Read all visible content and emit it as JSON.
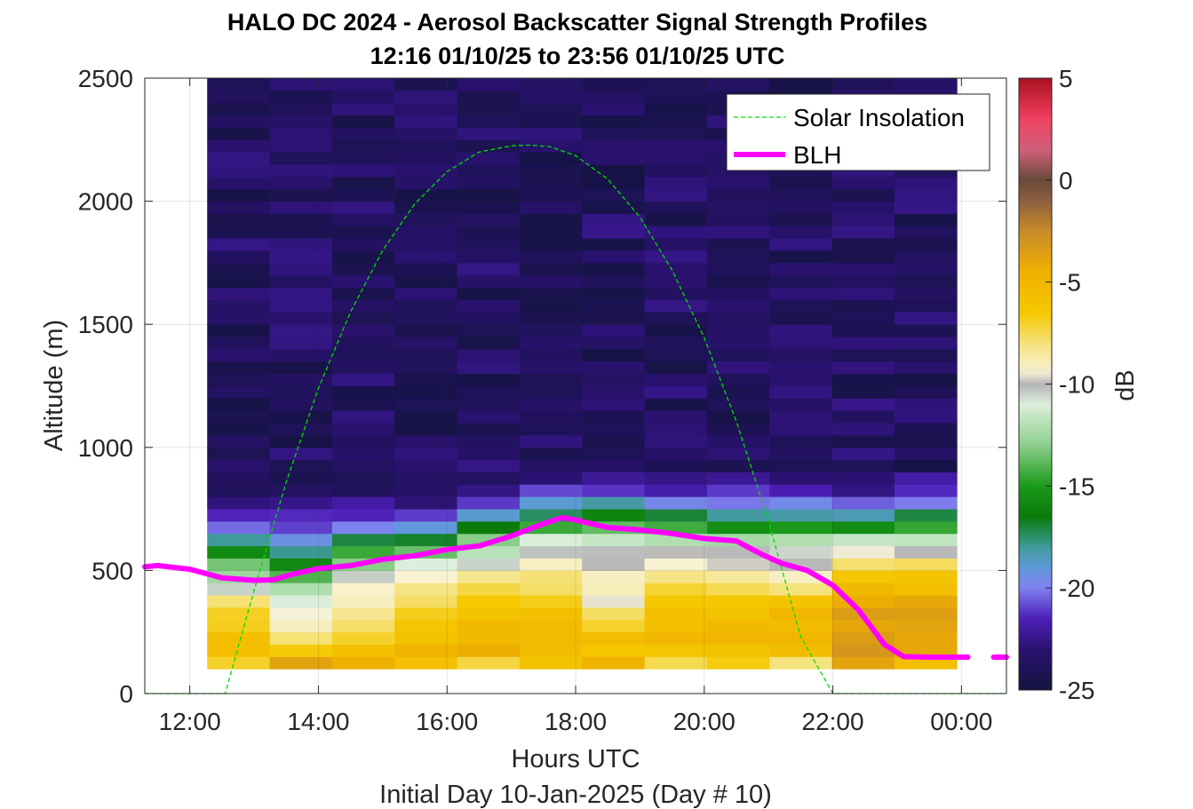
{
  "chart_data": {
    "type": "heatmap",
    "title": "HALO DC 2024 - Aerosol Backscatter Signal Strength Profiles",
    "subtitle": "12:16 01/10/25 to 23:56 01/10/25  UTC",
    "xlabel": "Hours UTC",
    "xlabel2": "Initial Day 10-Jan-2025 (Day # 10)",
    "ylabel": "Altitude (m)",
    "xlim": [
      11.3,
      24.7
    ],
    "ylim": [
      0,
      2500
    ],
    "x_ticks": [
      12,
      14,
      16,
      18,
      20,
      22,
      24
    ],
    "x_tick_labels": [
      "12:00",
      "14:00",
      "16:00",
      "18:00",
      "20:00",
      "22:00",
      "00:00"
    ],
    "y_ticks": [
      0,
      500,
      1000,
      1500,
      2000,
      2500
    ],
    "y_tick_labels": [
      "0",
      "500",
      "1000",
      "1500",
      "2000",
      "2500"
    ],
    "grid": true,
    "colorbar": {
      "label": "dB",
      "min": -25,
      "max": 5,
      "ticks": [
        5,
        0,
        -5,
        -10,
        -15,
        -20,
        -25
      ],
      "tick_labels": [
        "5",
        "0",
        "-5",
        "-10",
        "-15",
        "-20",
        "-25"
      ],
      "stops": [
        {
          "v": -25,
          "c": "#13133f"
        },
        {
          "v": -23,
          "c": "#2a1270"
        },
        {
          "v": -21.5,
          "c": "#4d1fb8"
        },
        {
          "v": -20,
          "c": "#8080f0"
        },
        {
          "v": -19,
          "c": "#5f9ad8"
        },
        {
          "v": -18,
          "c": "#3f9a9a"
        },
        {
          "v": -16.5,
          "c": "#0a7a0a"
        },
        {
          "v": -15,
          "c": "#1a9a1a"
        },
        {
          "v": -13,
          "c": "#8ccf8c"
        },
        {
          "v": -11,
          "c": "#dcefdc"
        },
        {
          "v": -10,
          "c": "#b4b4b4"
        },
        {
          "v": -9.4,
          "c": "#f8f3d8"
        },
        {
          "v": -8,
          "c": "#f5e27a"
        },
        {
          "v": -6.5,
          "c": "#f5c800"
        },
        {
          "v": -4.5,
          "c": "#efb000"
        },
        {
          "v": -2.5,
          "c": "#c88a2a"
        },
        {
          "v": -1,
          "c": "#8c6040"
        },
        {
          "v": 0,
          "c": "#6a4a3a"
        },
        {
          "v": 1.5,
          "c": "#d0607a"
        },
        {
          "v": 3,
          "c": "#f04060"
        },
        {
          "v": 5,
          "c": "#aa1020"
        }
      ]
    },
    "grid_spec": {
      "time_start": 12.27,
      "time_end": 23.93,
      "n_time": 12,
      "alt_start": 100,
      "alt_end": 2500,
      "alt_step": 50
    },
    "profiles_db": [
      [
        -8,
        -6,
        -6,
        -6,
        -7,
        -8,
        -9,
        -11,
        -13,
        -15,
        -17,
        -20,
        -21,
        -22,
        -23,
        -24,
        -24
      ],
      [
        -3,
        -5,
        -7,
        -8,
        -9,
        -10,
        -11,
        -13,
        -15,
        -17,
        -19,
        -20,
        -21,
        -22,
        -23,
        -24,
        -24
      ],
      [
        -5,
        -5,
        -6,
        -7,
        -8,
        -8,
        -9,
        -10,
        -12,
        -14,
        -16,
        -19,
        -21,
        -22,
        -23,
        -24,
        -24
      ],
      [
        -6,
        -5,
        -5,
        -6,
        -6,
        -7,
        -8,
        -9,
        -10,
        -12,
        -15,
        -18,
        -20,
        -22,
        -23,
        -24,
        -24
      ],
      [
        -9,
        -5,
        -5,
        -5,
        -6,
        -6,
        -7,
        -8,
        -9,
        -11,
        -12,
        -15,
        -18,
        -20,
        -22,
        -23,
        -24
      ],
      [
        -7,
        -6,
        -5,
        -5,
        -6,
        -6,
        -7,
        -8,
        -9,
        -10,
        -11,
        -12,
        -16,
        -18,
        -20,
        -22,
        -23
      ],
      [
        -3,
        -7,
        -6,
        -6,
        -7,
        -8,
        -10,
        -9,
        -9,
        -10,
        -11,
        -12,
        -15,
        -17,
        -20,
        -22,
        -23
      ],
      [
        -8,
        -7,
        -5,
        -5,
        -6,
        -6,
        -7,
        -8,
        -9,
        -10,
        -11,
        -13,
        -16,
        -18,
        -21,
        -22,
        -23
      ],
      [
        -7,
        -7,
        -5,
        -5,
        -6,
        -6,
        -7,
        -8,
        -9,
        -10,
        -11,
        -13,
        -17,
        -19,
        -21,
        -22,
        -23
      ],
      [
        -9,
        -6,
        -5,
        -5,
        -5,
        -6,
        -7,
        -8,
        -9,
        -10,
        -11,
        -12,
        -17,
        -19,
        -21,
        -22,
        -23
      ],
      [
        -4,
        -4,
        -3,
        -3,
        -4,
        -4,
        -5,
        -6,
        -7,
        -9,
        -11,
        -13,
        -18,
        -20,
        -22,
        -23,
        -24
      ],
      [
        -6,
        -5,
        -4,
        -4,
        -4,
        -4,
        -5,
        -6,
        -7,
        -9,
        -11,
        -13,
        -15,
        -18,
        -21,
        -22,
        -23
      ]
    ],
    "solar_insolation": {
      "name": "Solar Insolation",
      "color": "#00dd00",
      "x": [
        11.3,
        12.55,
        13.0,
        13.5,
        14.0,
        14.5,
        15.0,
        15.5,
        16.0,
        16.5,
        17.0,
        17.3,
        17.6,
        18.0,
        18.5,
        19.0,
        19.5,
        20.0,
        20.5,
        21.0,
        21.5,
        22.0,
        24.7
      ],
      "y": [
        0,
        0,
        420,
        860,
        1240,
        1550,
        1800,
        1990,
        2120,
        2200,
        2225,
        2228,
        2222,
        2185,
        2090,
        1935,
        1720,
        1445,
        1105,
        700,
        230,
        0,
        0
      ]
    },
    "blh": {
      "name": "BLH",
      "color": "#ff00ff",
      "x": [
        11.3,
        11.5,
        12.0,
        12.5,
        13.0,
        13.3,
        13.6,
        14.0,
        14.5,
        15.0,
        15.5,
        16.0,
        16.5,
        17.0,
        17.5,
        17.8,
        18.0,
        18.5,
        19.0,
        19.5,
        20.0,
        20.5,
        20.9,
        21.2,
        21.6,
        22.0,
        22.4,
        22.8,
        23.1,
        23.5,
        24.1
      ],
      "y": [
        515,
        520,
        505,
        470,
        460,
        462,
        485,
        508,
        520,
        545,
        560,
        585,
        600,
        640,
        690,
        715,
        705,
        675,
        665,
        650,
        630,
        620,
        565,
        530,
        500,
        440,
        340,
        200,
        150,
        148,
        148
      ],
      "x_tail": [
        24.5,
        24.7
      ],
      "y_tail": [
        148,
        148
      ]
    },
    "legend": {
      "placement": "top-right",
      "entries": [
        "Solar Insolation",
        "BLH"
      ]
    }
  }
}
